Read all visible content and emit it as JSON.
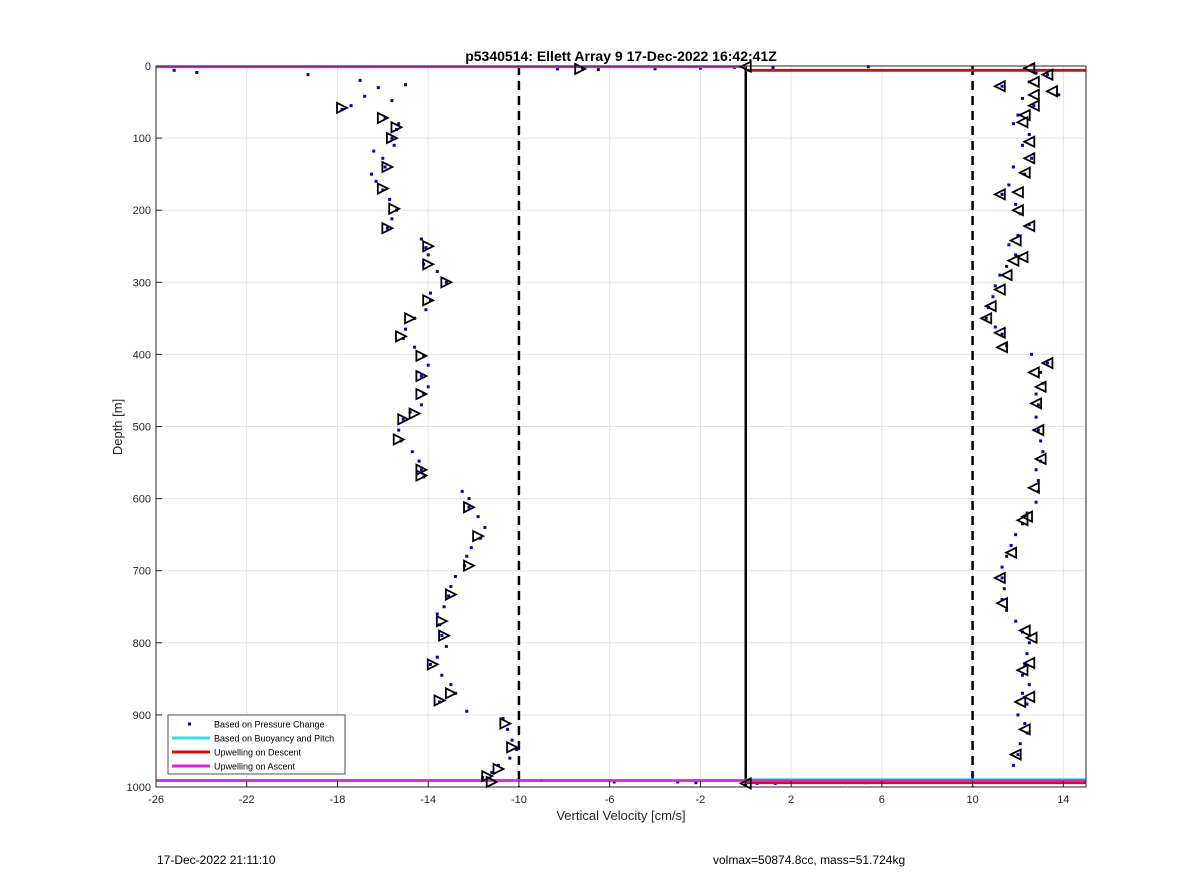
{
  "chart_data": {
    "type": "scatter",
    "title": "p5340514: Ellett Array 9 17-Dec-2022 16:42:41Z",
    "xlabel": "Vertical Velocity [cm/s]",
    "ylabel": "Depth [m]",
    "xlim": [
      -26,
      15
    ],
    "ylim": [
      0,
      1000
    ],
    "y_reversed": true,
    "grid": true,
    "x_ticks": [
      -26,
      -22,
      -18,
      -14,
      -10,
      -6,
      -2,
      2,
      6,
      10,
      14
    ],
    "x_tick_labels": [
      "-26",
      "-22",
      "-18",
      "-14",
      "-10",
      "-6",
      "-2",
      "2",
      "6",
      "10",
      "14"
    ],
    "y_ticks": [
      0,
      100,
      200,
      300,
      400,
      500,
      600,
      700,
      800,
      900,
      1000
    ],
    "y_tick_labels": [
      "0",
      "100",
      "200",
      "300",
      "400",
      "500",
      "600",
      "700",
      "800",
      "900",
      "1000"
    ],
    "legend_position": "bottom-left",
    "legend": [
      {
        "name": "Based on Pressure Change",
        "style": "dot",
        "color": "#0000cc"
      },
      {
        "name": "Based on Buoyancy and Pitch",
        "style": "line",
        "color": "#33dddd"
      },
      {
        "name": "Upwelling on Descent",
        "style": "line",
        "color": "#cc1111"
      },
      {
        "name": "Upwelling on Ascent",
        "style": "line",
        "color": "#dd22dd"
      }
    ],
    "reference_lines": [
      {
        "x": -10,
        "style": "dashed",
        "color": "#000000"
      },
      {
        "x": 10,
        "style": "dashed",
        "color": "#000000"
      },
      {
        "x": 0,
        "style": "solid",
        "color": "#000000"
      }
    ],
    "ascent_profile": {
      "color": "#0000cc",
      "points": [
        [
          -25.2,
          6
        ],
        [
          -24.2,
          9
        ],
        [
          -19.3,
          12
        ],
        [
          -17.0,
          20
        ],
        [
          -16.2,
          30
        ],
        [
          -15.0,
          26
        ],
        [
          -16.8,
          42
        ],
        [
          -15.6,
          48
        ],
        [
          -17.4,
          55
        ],
        [
          -17.8,
          60
        ],
        [
          -15.9,
          72
        ],
        [
          -15.3,
          80
        ],
        [
          -15.4,
          88
        ],
        [
          -15.6,
          100
        ],
        [
          -15.5,
          110
        ],
        [
          -16.4,
          118
        ],
        [
          -16.0,
          128
        ],
        [
          -15.9,
          140
        ],
        [
          -16.5,
          150
        ],
        [
          -16.3,
          160
        ],
        [
          -16.0,
          172
        ],
        [
          -15.7,
          185
        ],
        [
          -15.4,
          200
        ],
        [
          -15.6,
          212
        ],
        [
          -15.8,
          225
        ],
        [
          -14.3,
          240
        ],
        [
          -14.1,
          252
        ],
        [
          -14.0,
          262
        ],
        [
          -14.2,
          275
        ],
        [
          -13.6,
          285
        ],
        [
          -13.2,
          300
        ],
        [
          -13.9,
          315
        ],
        [
          -13.9,
          325
        ],
        [
          -14.1,
          338
        ],
        [
          -14.6,
          350
        ],
        [
          -15.0,
          365
        ],
        [
          -15.1,
          378
        ],
        [
          -14.6,
          390
        ],
        [
          -14.2,
          402
        ],
        [
          -14.0,
          415
        ],
        [
          -14.3,
          430
        ],
        [
          -14.0,
          445
        ],
        [
          -14.2,
          455
        ],
        [
          -14.3,
          470
        ],
        [
          -14.8,
          480
        ],
        [
          -15.1,
          490
        ],
        [
          -15.3,
          505
        ],
        [
          -15.2,
          520
        ],
        [
          -14.7,
          535
        ],
        [
          -14.4,
          548
        ],
        [
          -14.3,
          560
        ],
        [
          -14.2,
          570
        ],
        [
          -12.5,
          590
        ],
        [
          -12.2,
          600
        ],
        [
          -12.2,
          612
        ],
        [
          -11.8,
          625
        ],
        [
          -11.5,
          640
        ],
        [
          -11.7,
          655
        ],
        [
          -12.1,
          668
        ],
        [
          -12.3,
          680
        ],
        [
          -12.4,
          693
        ],
        [
          -12.8,
          708
        ],
        [
          -13.0,
          722
        ],
        [
          -13.1,
          735
        ],
        [
          -13.3,
          750
        ],
        [
          -13.6,
          760
        ],
        [
          -13.5,
          775
        ],
        [
          -13.4,
          790
        ],
        [
          -13.2,
          805
        ],
        [
          -13.6,
          820
        ],
        [
          -13.9,
          830
        ],
        [
          -13.4,
          845
        ],
        [
          -13.0,
          858
        ],
        [
          -12.8,
          870
        ],
        [
          -13.5,
          882
        ],
        [
          -12.3,
          895
        ],
        [
          -10.7,
          905
        ],
        [
          -10.5,
          920
        ],
        [
          -10.3,
          935
        ],
        [
          -10.1,
          948
        ],
        [
          -10.4,
          960
        ],
        [
          -10.9,
          970
        ],
        [
          -11.2,
          980
        ],
        [
          -11.6,
          987
        ],
        [
          -11.0,
          992
        ],
        [
          -9.0,
          991
        ],
        [
          -5.8,
          993
        ],
        [
          -3.0,
          993
        ],
        [
          -2.2,
          994
        ],
        [
          -8.3,
          4
        ],
        [
          -6.5,
          5
        ],
        [
          -7.2,
          3
        ],
        [
          -4.0,
          4
        ],
        [
          -2.0,
          3
        ],
        [
          -0.5,
          2
        ],
        [
          1.2,
          2
        ],
        [
          5.4,
          1
        ]
      ],
      "markers": [
        [
          -17.8,
          58
        ],
        [
          -16.0,
          72
        ],
        [
          -15.4,
          85
        ],
        [
          -15.6,
          100
        ],
        [
          -15.8,
          140
        ],
        [
          -16.0,
          170
        ],
        [
          -15.5,
          198
        ],
        [
          -15.8,
          225
        ],
        [
          -14.0,
          250
        ],
        [
          -14.0,
          275
        ],
        [
          -13.2,
          300
        ],
        [
          -14.0,
          325
        ],
        [
          -14.8,
          350
        ],
        [
          -15.2,
          375
        ],
        [
          -14.3,
          402
        ],
        [
          -14.3,
          430
        ],
        [
          -14.3,
          455
        ],
        [
          -14.6,
          482
        ],
        [
          -15.1,
          490
        ],
        [
          -15.3,
          518
        ],
        [
          -14.3,
          560
        ],
        [
          -14.3,
          568
        ],
        [
          -12.2,
          612
        ],
        [
          -11.8,
          652
        ],
        [
          -12.2,
          693
        ],
        [
          -13.0,
          733
        ],
        [
          -13.4,
          770
        ],
        [
          -13.3,
          790
        ],
        [
          -13.8,
          830
        ],
        [
          -13.0,
          870
        ],
        [
          -13.5,
          880
        ],
        [
          -10.6,
          912
        ],
        [
          -10.3,
          945
        ],
        [
          -10.9,
          975
        ],
        [
          -11.4,
          985
        ],
        [
          -11.2,
          993
        ],
        [
          -7.3,
          4
        ]
      ]
    },
    "descent_profile": {
      "color": "#0000cc",
      "points": [
        [
          12.3,
          4
        ],
        [
          12.8,
          10
        ],
        [
          13.3,
          12
        ],
        [
          13.8,
          40
        ],
        [
          11.3,
          28
        ],
        [
          12.5,
          22
        ],
        [
          12.2,
          45
        ],
        [
          12.7,
          55
        ],
        [
          12.0,
          68
        ],
        [
          11.8,
          80
        ],
        [
          12.5,
          95
        ],
        [
          12.2,
          110
        ],
        [
          12.6,
          128
        ],
        [
          11.8,
          140
        ],
        [
          12.3,
          150
        ],
        [
          11.6,
          165
        ],
        [
          11.3,
          178
        ],
        [
          11.9,
          192
        ],
        [
          12.1,
          205
        ],
        [
          12.5,
          220
        ],
        [
          12.0,
          235
        ],
        [
          11.6,
          248
        ],
        [
          11.9,
          262
        ],
        [
          11.5,
          278
        ],
        [
          11.2,
          290
        ],
        [
          11.0,
          305
        ],
        [
          10.9,
          320
        ],
        [
          10.7,
          335
        ],
        [
          10.6,
          350
        ],
        [
          11.0,
          362
        ],
        [
          11.3,
          372
        ],
        [
          11.5,
          388
        ],
        [
          12.6,
          400
        ],
        [
          13.3,
          412
        ],
        [
          13.0,
          425
        ],
        [
          13.1,
          440
        ],
        [
          12.8,
          455
        ],
        [
          12.9,
          470
        ],
        [
          12.8,
          487
        ],
        [
          12.9,
          505
        ],
        [
          13.0,
          520
        ],
        [
          13.1,
          535
        ],
        [
          13.0,
          548
        ],
        [
          12.8,
          560
        ],
        [
          12.9,
          575
        ],
        [
          12.9,
          590
        ],
        [
          12.8,
          605
        ],
        [
          12.4,
          620
        ],
        [
          12.2,
          635
        ],
        [
          11.9,
          650
        ],
        [
          11.7,
          665
        ],
        [
          11.5,
          680
        ],
        [
          11.3,
          695
        ],
        [
          11.3,
          710
        ],
        [
          11.4,
          725
        ],
        [
          11.3,
          740
        ],
        [
          11.5,
          755
        ],
        [
          11.9,
          770
        ],
        [
          12.2,
          785
        ],
        [
          12.5,
          800
        ],
        [
          12.4,
          815
        ],
        [
          12.3,
          830
        ],
        [
          12.2,
          845
        ],
        [
          12.5,
          858
        ],
        [
          12.2,
          870
        ],
        [
          12.4,
          885
        ],
        [
          12.0,
          900
        ],
        [
          12.3,
          912
        ],
        [
          12.4,
          925
        ],
        [
          12.1,
          940
        ],
        [
          12.0,
          955
        ],
        [
          11.8,
          970
        ],
        [
          10.0,
          983
        ],
        [
          9.5,
          992
        ],
        [
          7.8,
          993
        ],
        [
          6.5,
          993
        ],
        [
          5.3,
          994
        ],
        [
          4.4,
          994
        ],
        [
          1.3,
          995
        ],
        [
          0.5,
          995
        ]
      ],
      "markers": [
        [
          12.5,
          3
        ],
        [
          13.3,
          12
        ],
        [
          12.7,
          22
        ],
        [
          11.2,
          28
        ],
        [
          13.5,
          35
        ],
        [
          12.7,
          40
        ],
        [
          12.7,
          55
        ],
        [
          12.3,
          68
        ],
        [
          12.2,
          78
        ],
        [
          12.5,
          105
        ],
        [
          12.5,
          128
        ],
        [
          12.3,
          148
        ],
        [
          11.2,
          178
        ],
        [
          12.0,
          175
        ],
        [
          12.0,
          200
        ],
        [
          12.5,
          222
        ],
        [
          11.9,
          242
        ],
        [
          12.2,
          265
        ],
        [
          11.8,
          270
        ],
        [
          11.5,
          290
        ],
        [
          11.2,
          310
        ],
        [
          10.8,
          333
        ],
        [
          10.6,
          350
        ],
        [
          11.2,
          370
        ],
        [
          11.3,
          390
        ],
        [
          13.3,
          412
        ],
        [
          12.7,
          425
        ],
        [
          13.0,
          445
        ],
        [
          12.8,
          468
        ],
        [
          12.9,
          505
        ],
        [
          13.0,
          545
        ],
        [
          12.7,
          585
        ],
        [
          12.4,
          625
        ],
        [
          12.2,
          630
        ],
        [
          11.7,
          675
        ],
        [
          11.2,
          710
        ],
        [
          11.3,
          745
        ],
        [
          12.3,
          783
        ],
        [
          12.6,
          793
        ],
        [
          12.2,
          838
        ],
        [
          12.5,
          828
        ],
        [
          12.5,
          875
        ],
        [
          12.1,
          882
        ],
        [
          12.3,
          920
        ],
        [
          11.9,
          955
        ],
        [
          0.0,
          1
        ],
        [
          0.0,
          995
        ]
      ]
    },
    "upwelling_ascent_lines": [
      {
        "x": [
          -26,
          0
        ],
        "depth": 1,
        "color": "#dd22dd"
      },
      {
        "x": [
          -26,
          15
        ],
        "depth": 991,
        "color": "#dd22dd"
      }
    ],
    "upwelling_descent_lines": [
      {
        "x": [
          0,
          15
        ],
        "depth": 6,
        "color": "#cc1111"
      },
      {
        "x": [
          0,
          15
        ],
        "depth": 994,
        "color": "#cc1111"
      }
    ],
    "buoyancy_lines": [
      {
        "x": [
          0,
          15
        ],
        "depth": 990,
        "color": "#33dddd"
      }
    ]
  },
  "footer": {
    "timestamp": "17-Dec-2022 21:11:10",
    "params": "volmax=50874.8cc, mass=51.724kg"
  }
}
